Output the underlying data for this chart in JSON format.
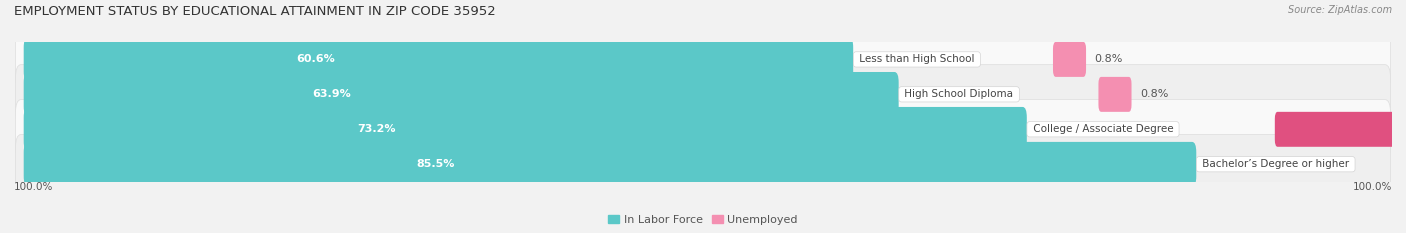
{
  "title": "EMPLOYMENT STATUS BY EDUCATIONAL ATTAINMENT IN ZIP CODE 35952",
  "source": "Source: ZipAtlas.com",
  "categories": [
    "Less than High School",
    "High School Diploma",
    "College / Associate Degree",
    "Bachelor’s Degree or higher"
  ],
  "labor_force": [
    60.6,
    63.9,
    73.2,
    85.5
  ],
  "unemployed": [
    0.8,
    0.8,
    4.0,
    0.0
  ],
  "labor_color": "#5BC8C8",
  "unemployed_color": "#F48FB1",
  "unemployed_color_college": "#E05080",
  "background_color": "#f2f2f2",
  "row_light": "#f9f9f9",
  "row_dark": "#efefef",
  "title_fontsize": 9.5,
  "label_fontsize": 8,
  "tick_fontsize": 7.5,
  "source_fontsize": 7,
  "x_left_label": "100.0%",
  "x_right_label": "100.0%",
  "axis_min": 0,
  "axis_max": 100
}
